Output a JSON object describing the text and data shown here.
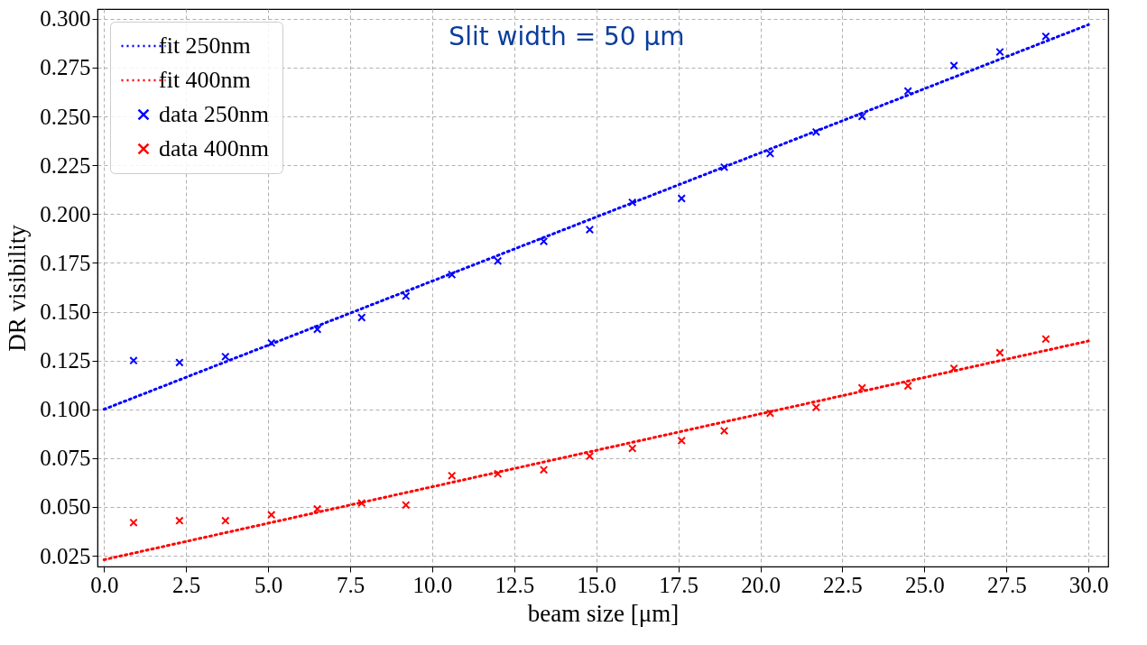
{
  "chart_data": {
    "type": "scatter",
    "xlabel": "beam size [μm]",
    "ylabel": "DR visibility",
    "annotations": [
      "Slit width  = 50 μm"
    ],
    "xlim": [
      -0.2,
      30.6
    ],
    "ylim": [
      0.0195,
      0.305
    ],
    "xticks": [
      {
        "value": 0,
        "label": "0.0"
      },
      {
        "value": 2.5,
        "label": "2.5"
      },
      {
        "value": 5,
        "label": "5.0"
      },
      {
        "value": 7.5,
        "label": "7.5"
      },
      {
        "value": 10,
        "label": "10.0"
      },
      {
        "value": 12.5,
        "label": "12.5"
      },
      {
        "value": 15,
        "label": "15.0"
      },
      {
        "value": 17.5,
        "label": "17.5"
      },
      {
        "value": 20,
        "label": "20.0"
      },
      {
        "value": 22.5,
        "label": "22.5"
      },
      {
        "value": 25,
        "label": "25.0"
      },
      {
        "value": 27.5,
        "label": "27.5"
      },
      {
        "value": 30,
        "label": "30.0"
      }
    ],
    "yticks": [
      0.025,
      {
        "value": 0.05,
        "label": "0.050"
      },
      0.075,
      {
        "value": 0.1,
        "label": "0.100"
      },
      0.125,
      {
        "value": 0.15,
        "label": "0.150"
      },
      0.175,
      {
        "value": 0.2,
        "label": "0.200"
      },
      0.225,
      {
        "value": 0.25,
        "label": "0.250"
      },
      0.275,
      {
        "value": 0.3,
        "label": "0.300"
      }
    ],
    "grid": true,
    "legend": "top left",
    "series": [
      {
        "name": "fit 250nm",
        "type": "line",
        "marker": "none",
        "line_style": "dotted",
        "color": "#0000ff",
        "x": [
          0,
          30
        ],
        "values": [
          0.1,
          0.297
        ]
      },
      {
        "name": "fit 400nm",
        "type": "line",
        "marker": "none",
        "line_style": "dotted",
        "color": "#ff0000",
        "x": [
          0,
          30
        ],
        "values": [
          0.023,
          0.135
        ]
      },
      {
        "name": "data 250nm",
        "type": "scatter",
        "marker": "cross",
        "color": "#0000ff",
        "x": [
          0.9,
          2.3,
          3.7,
          5.1,
          6.5,
          7.85,
          9.2,
          10.6,
          12.0,
          13.4,
          14.8,
          16.1,
          17.6,
          18.9,
          20.3,
          21.7,
          23.1,
          24.5,
          25.9,
          27.3,
          28.7
        ],
        "values": [
          0.125,
          0.124,
          0.127,
          0.134,
          0.141,
          0.147,
          0.158,
          0.169,
          0.176,
          0.186,
          0.192,
          0.206,
          0.208,
          0.224,
          0.231,
          0.242,
          0.25,
          0.263,
          0.276,
          0.283,
          0.291
        ]
      },
      {
        "name": "data 400nm",
        "type": "scatter",
        "marker": "cross",
        "color": "#ff0000",
        "x": [
          0.9,
          2.3,
          3.7,
          5.1,
          6.5,
          7.85,
          9.2,
          10.6,
          12.0,
          13.4,
          14.8,
          16.1,
          17.6,
          18.9,
          20.3,
          21.7,
          23.1,
          24.5,
          25.9,
          27.3,
          28.7
        ],
        "values": [
          0.042,
          0.043,
          0.043,
          0.046,
          0.049,
          0.052,
          0.051,
          0.066,
          0.067,
          0.069,
          0.076,
          0.08,
          0.084,
          0.089,
          0.098,
          0.101,
          0.111,
          0.112,
          0.121,
          0.129,
          0.136
        ]
      }
    ]
  }
}
